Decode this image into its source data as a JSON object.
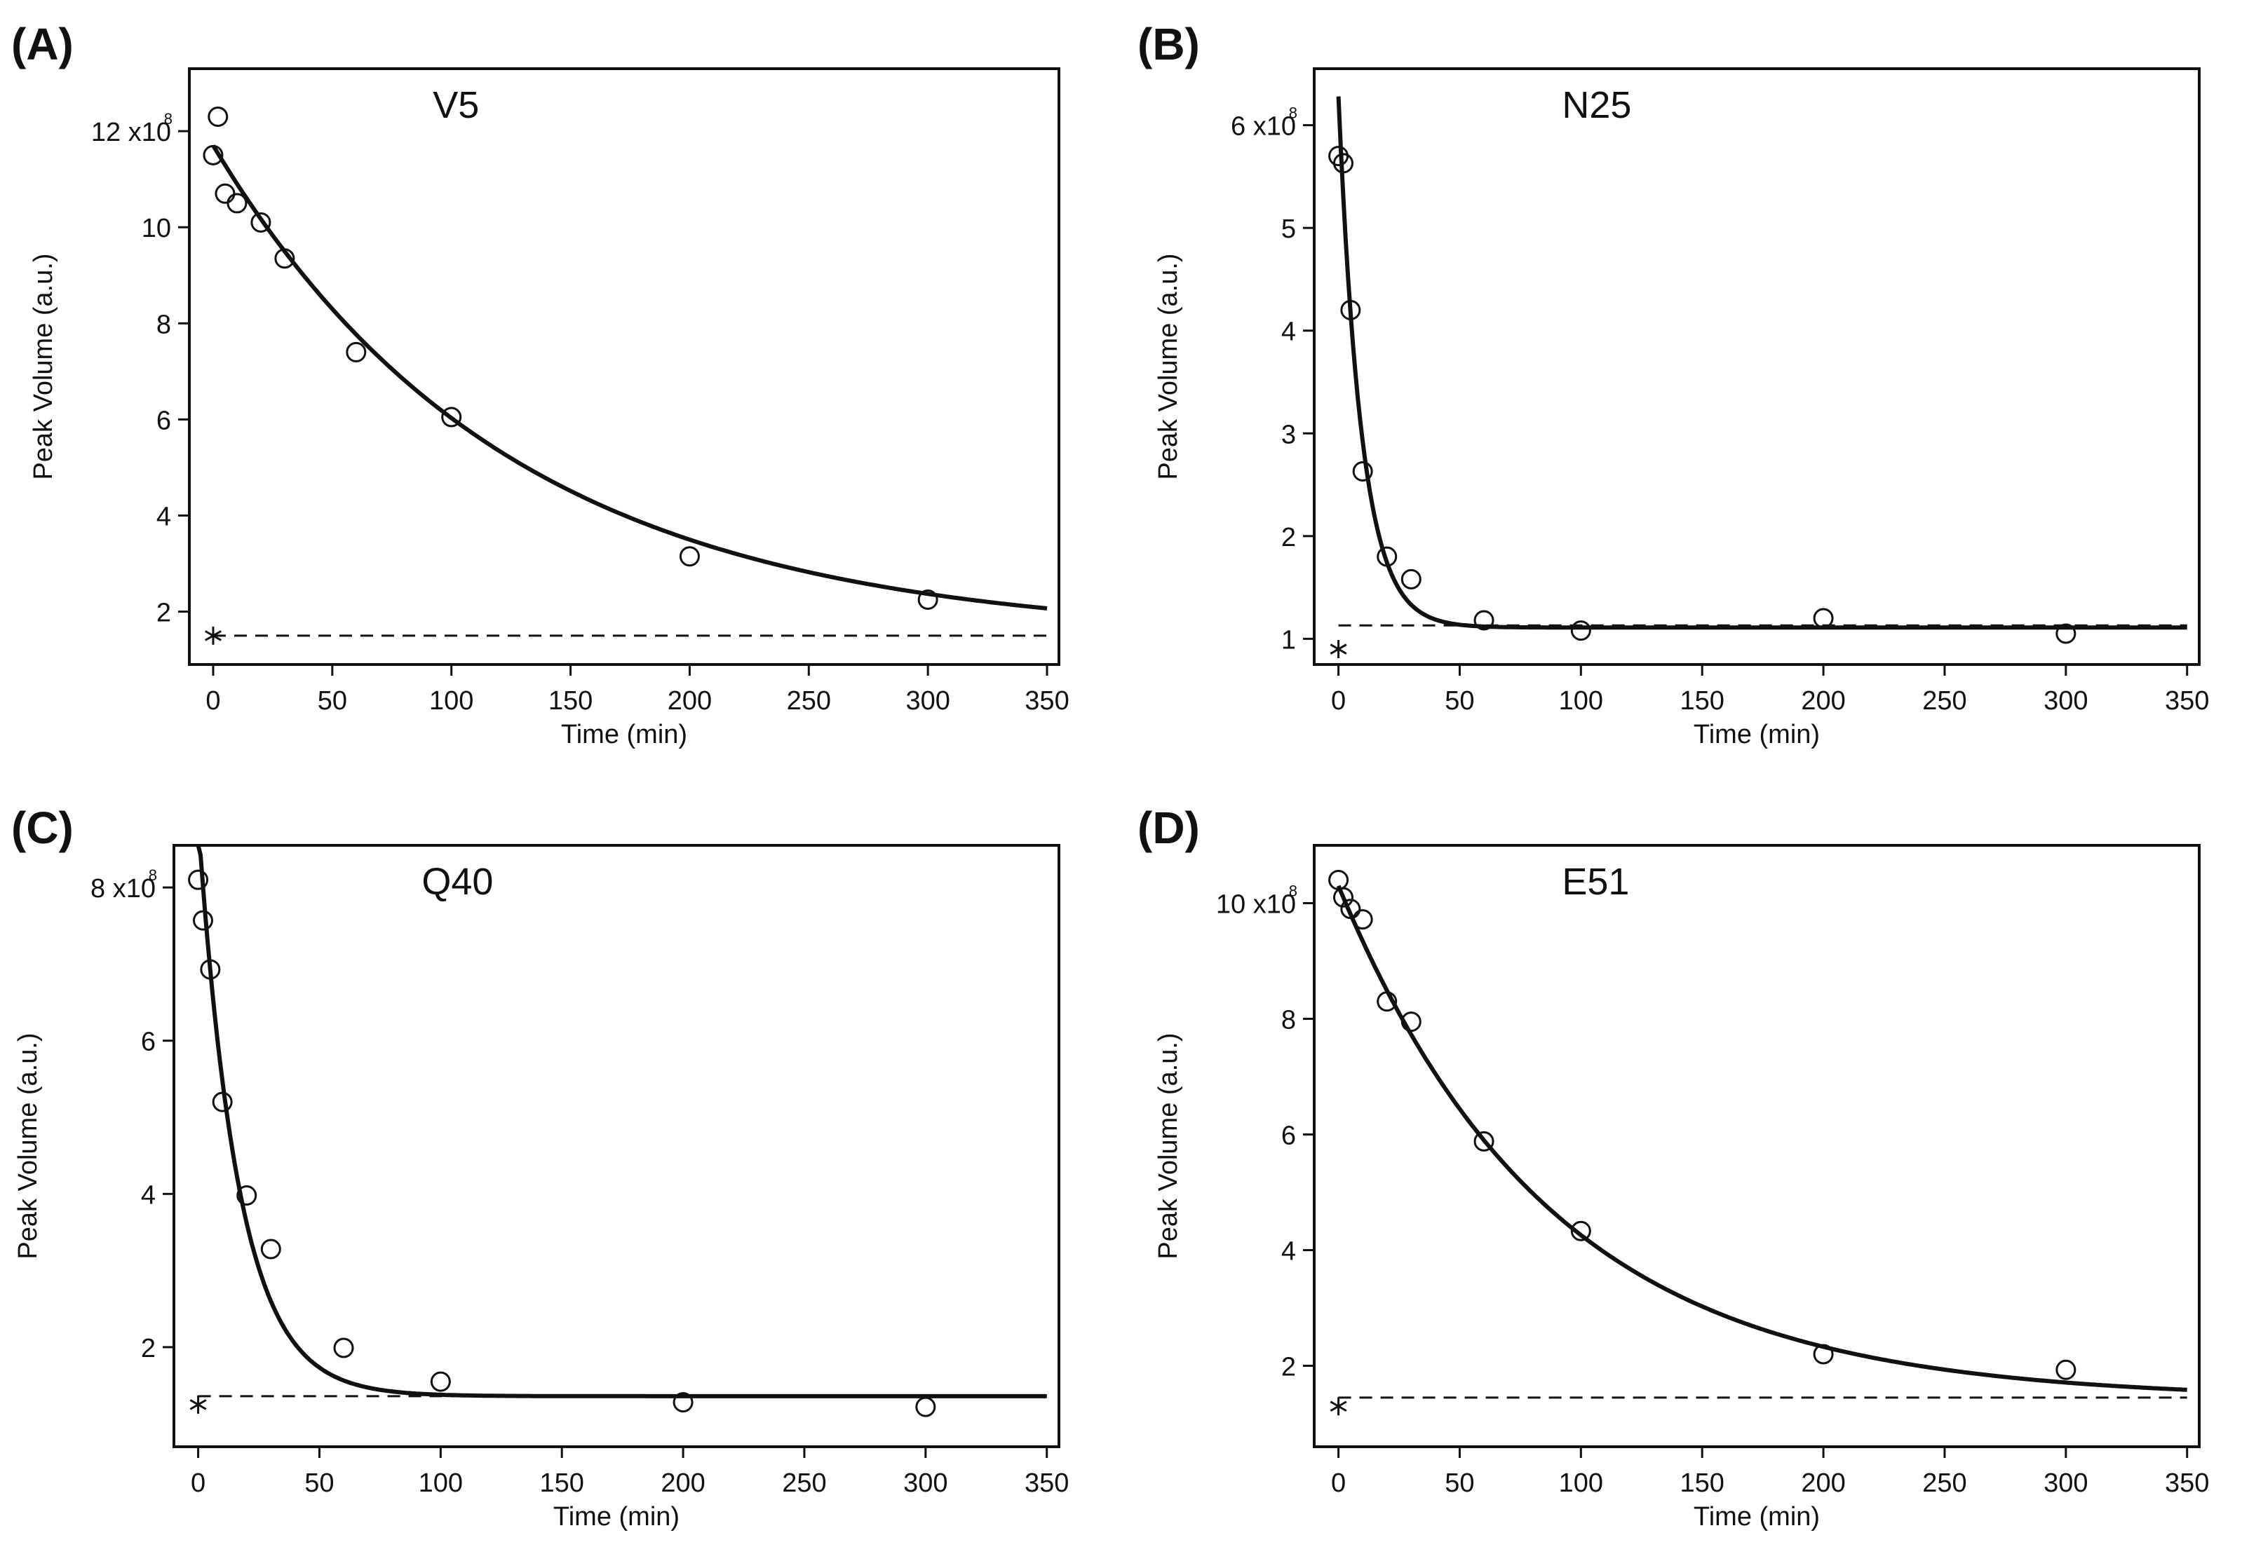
{
  "chart_data": [
    {
      "panel": "(A)",
      "type": "scatter",
      "series_name": "V5",
      "xlabel": "Time (min)",
      "ylabel": "Peak Volume (a.u.)",
      "xlim": [
        -10,
        355
      ],
      "ylim": [
        0.9,
        13.3
      ],
      "xticks": [
        0,
        50,
        100,
        150,
        200,
        250,
        300,
        350
      ],
      "yticks": [
        2,
        4,
        6,
        8,
        10,
        12
      ],
      "ytick_labels": [
        "2",
        "4",
        "6",
        "8",
        "10",
        "12 x10"
      ],
      "top_exponent": "8",
      "points": {
        "x": [
          0,
          2,
          5,
          10,
          20,
          30,
          60,
          100,
          200,
          300
        ],
        "y": [
          11.5,
          12.3,
          10.7,
          10.5,
          10.1,
          9.35,
          7.4,
          6.05,
          3.15,
          2.25
        ]
      },
      "fit": {
        "model": "exponential decay",
        "A": 10.24,
        "k": 0.00807,
        "C": 1.46
      },
      "baseline": 1.5,
      "star": {
        "x": 0,
        "y": 1.5
      }
    },
    {
      "panel": "(B)",
      "type": "scatter",
      "series_name": "N25",
      "xlabel": "Time (min)",
      "ylabel": "Peak Volume (a.u.)",
      "xlim": [
        -10,
        355
      ],
      "ylim": [
        0.75,
        6.55
      ],
      "xticks": [
        0,
        50,
        100,
        150,
        200,
        250,
        300,
        350
      ],
      "yticks": [
        1,
        2,
        3,
        4,
        5,
        6
      ],
      "ytick_labels": [
        "1",
        "2",
        "3",
        "4",
        "5",
        "6 x10"
      ],
      "top_exponent": "8",
      "points": {
        "x": [
          0,
          2,
          5,
          10,
          20,
          30,
          60,
          100,
          200,
          300
        ],
        "y": [
          5.7,
          5.63,
          4.2,
          2.63,
          1.8,
          1.58,
          1.18,
          1.08,
          1.2,
          1.05
        ]
      },
      "fit": {
        "model": "exponential decay",
        "A": 5.17,
        "k": 0.105,
        "C": 1.11
      },
      "baseline": 1.13,
      "star": {
        "x": 0,
        "y": 0.9
      }
    },
    {
      "panel": "(C)",
      "type": "scatter",
      "series_name": "Q40",
      "xlabel": "Time (min)",
      "ylabel": "Peak Volume (a.u.)",
      "xlim": [
        -10,
        355
      ],
      "ylim": [
        0.7,
        8.55
      ],
      "xticks": [
        0,
        50,
        100,
        150,
        200,
        250,
        300,
        350
      ],
      "yticks": [
        2,
        4,
        6,
        8
      ],
      "ytick_labels": [
        "2",
        "4",
        "6",
        "8 x10"
      ],
      "top_exponent": "8",
      "points": {
        "x": [
          0,
          2,
          5,
          10,
          20,
          30,
          60,
          100,
          200,
          300
        ],
        "y": [
          8.1,
          7.57,
          6.93,
          5.2,
          3.98,
          3.28,
          1.99,
          1.55,
          1.28,
          1.22
        ]
      },
      "fit": {
        "model": "exponential decay",
        "A": 7.5,
        "k": 0.06,
        "C": 1.36
      },
      "baseline": 1.36,
      "star": {
        "x": 0,
        "y": 1.25
      }
    },
    {
      "panel": "(D)",
      "type": "scatter",
      "series_name": "E51",
      "xlabel": "Time (min)",
      "ylabel": "Peak Volume (a.u.)",
      "xlim": [
        -10,
        355
      ],
      "ylim": [
        0.6,
        11.0
      ],
      "xticks": [
        0,
        50,
        100,
        150,
        200,
        250,
        300,
        350
      ],
      "yticks": [
        2,
        4,
        6,
        8,
        10
      ],
      "ytick_labels": [
        "2",
        "4",
        "6",
        "8",
        "10 x10"
      ],
      "top_exponent": "8",
      "points": {
        "x": [
          0,
          2,
          5,
          10,
          20,
          30,
          60,
          100,
          200,
          300
        ],
        "y": [
          10.4,
          10.1,
          9.9,
          9.72,
          8.3,
          7.95,
          5.88,
          4.33,
          2.2,
          1.93
        ]
      },
      "fit": {
        "model": "exponential decay",
        "A": 8.88,
        "k": 0.0114,
        "C": 1.42
      },
      "baseline": 1.45,
      "star": {
        "x": 0,
        "y": 1.3
      }
    }
  ]
}
